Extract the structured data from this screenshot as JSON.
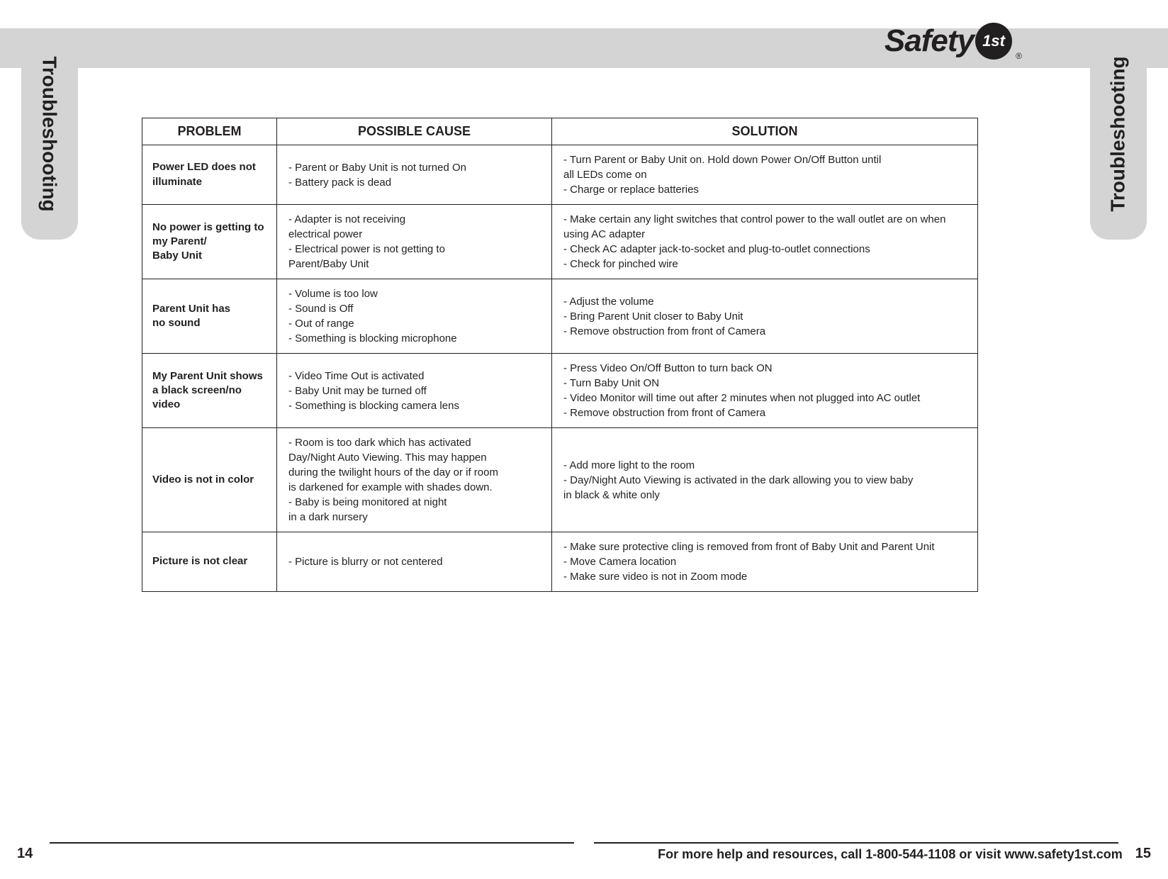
{
  "brand": {
    "name": "Safety",
    "badge": "1st",
    "reg": "®"
  },
  "tabs": {
    "left": "Troubleshooting",
    "right": "Troubleshooting"
  },
  "table": {
    "headers": [
      "PROBLEM",
      "POSSIBLE CAUSE",
      "SOLUTION"
    ],
    "rows": [
      {
        "problem": "Power LED does not illuminate",
        "cause": "- Parent or Baby Unit is not turned On\n- Battery pack is dead",
        "solution": "- Turn Parent or Baby Unit on. Hold down Power On/Off Button until\n   all LEDs come on\n- Charge or replace batteries"
      },
      {
        "problem": "No power is getting to my Parent/\nBaby Unit",
        "cause": "- Adapter is not receiving\n   electrical power\n- Electrical power is not getting to\n   Parent/Baby Unit",
        "solution": "- Make certain any light switches that control power to the wall outlet are on when\n   using AC adapter\n- Check AC adapter jack-to-socket and plug-to-outlet connections\n- Check for pinched wire"
      },
      {
        "problem": "Parent Unit has\nno sound",
        "cause": "- Volume is too low\n- Sound is Off\n- Out of range\n- Something is blocking microphone",
        "solution": "- Adjust the volume\n- Bring Parent Unit closer to Baby Unit\n- Remove obstruction from front of Camera"
      },
      {
        "problem": "My Parent Unit shows a black screen/no video",
        "cause": "- Video Time Out is activated\n- Baby Unit may be turned off\n- Something is blocking camera lens",
        "solution": "- Press Video On/Off Button to turn back ON\n- Turn Baby Unit ON\n- Video Monitor will time out after 2 minutes when not plugged into AC outlet\n- Remove obstruction from front of Camera"
      },
      {
        "problem": "Video is not in color",
        "cause": "- Room is too dark which has activated\n   Day/Night Auto Viewing. This may happen\n   during the twilight hours of the day or if room\n   is darkened for example with shades down.\n- Baby is being monitored at night\n   in a dark nursery",
        "solution": "- Add more light to the room\n- Day/Night Auto Viewing is activated in the dark allowing you to view baby\n   in black & white only"
      },
      {
        "problem": "Picture is not clear",
        "cause": "- Picture is blurry or not centered",
        "solution": "- Make sure protective cling is removed from front of Baby Unit and Parent Unit\n- Move Camera location\n- Make sure video is not in Zoom mode"
      }
    ]
  },
  "footer": {
    "leftPage": "14",
    "rightPage": "15",
    "helpText": "For more help and resources, call 1-800-544-1108 or visit www.safety1st.com"
  },
  "colors": {
    "band": "#d5d4d4",
    "text": "#221f20",
    "background": "#ffffff"
  }
}
